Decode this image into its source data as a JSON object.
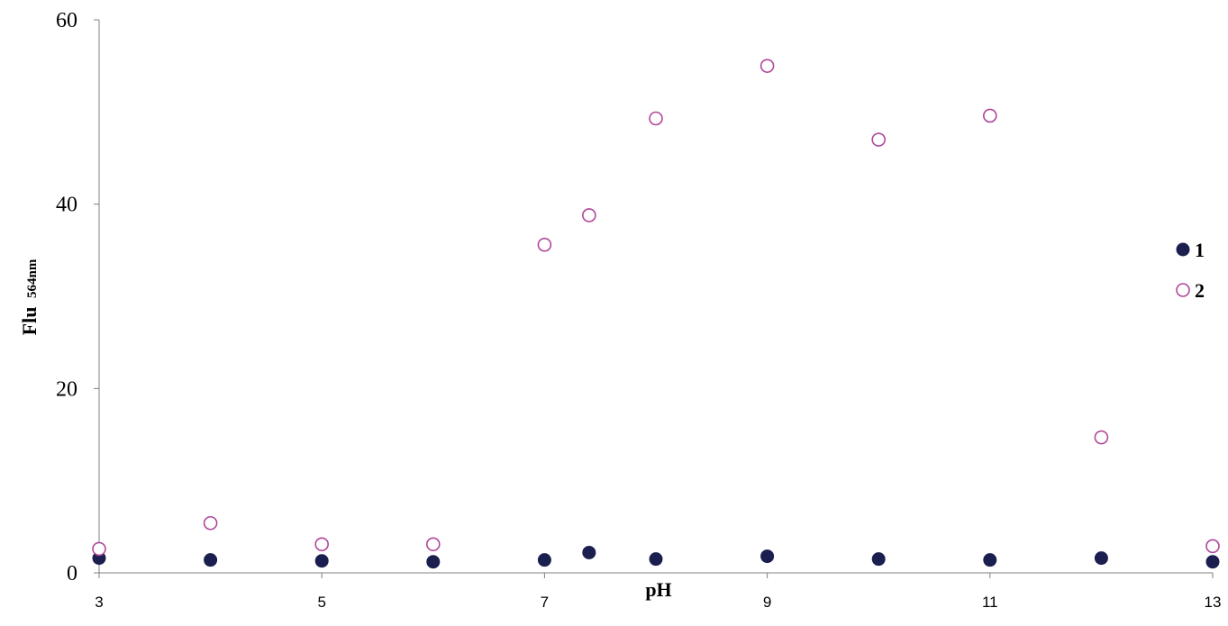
{
  "chart_data": {
    "type": "scatter",
    "title": "",
    "xlabel": "pH",
    "ylabel": "Flu",
    "ylabel_sub": "564nm",
    "xlim": [
      3,
      13
    ],
    "ylim": [
      0,
      60
    ],
    "x_ticks": [
      "3",
      "5",
      "7",
      "9",
      "11",
      "13"
    ],
    "y_ticks": [
      "0",
      "20",
      "40",
      "60"
    ],
    "grid": false,
    "legend_position": "right",
    "series": [
      {
        "name": "1",
        "marker": "filled-circle",
        "color": "#1b1f4f",
        "x": [
          3,
          4,
          5,
          6,
          7,
          7.4,
          8,
          9,
          10,
          11,
          12,
          13
        ],
        "y": [
          1.6,
          1.4,
          1.3,
          1.2,
          1.4,
          2.2,
          1.5,
          1.8,
          1.5,
          1.4,
          1.6,
          1.2
        ]
      },
      {
        "name": "2",
        "marker": "open-circle",
        "color": "#b0479a",
        "x": [
          3,
          4,
          5,
          6,
          7,
          7.4,
          8,
          9,
          10,
          11,
          12,
          13
        ],
        "y": [
          2.6,
          5.4,
          3.1,
          3.1,
          35.6,
          38.8,
          49.3,
          55.0,
          47.0,
          49.6,
          14.7,
          2.9
        ]
      }
    ]
  }
}
